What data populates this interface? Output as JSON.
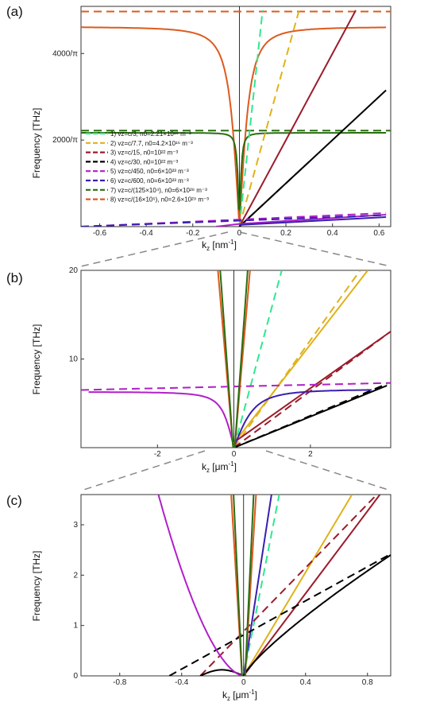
{
  "colors": {
    "s1": "#2ee88f",
    "s2": "#e0b21a",
    "s3": "#9b1c2c",
    "s4": "#000000",
    "s5": "#b020c8",
    "s6": "#3a1fb0",
    "s7": "#2a6e12",
    "s8": "#dd5a1e",
    "frame": "#333333",
    "zoom": "#888888"
  },
  "chart_data": [
    {
      "panel": "(a)",
      "type": "line",
      "xlabel": "kz [nm⁻¹]",
      "ylabel": "Frequency  [THz]",
      "xlim": [
        -0.68,
        0.65
      ],
      "ylim": [
        0,
        1620
      ],
      "xticks": [
        -0.6,
        -0.4,
        -0.2,
        0,
        0.2,
        0.4,
        0.6
      ],
      "xticklabels": [
        "-0.6",
        "-0.4",
        "-0.2",
        "0",
        "0.2",
        "0.4",
        "0.6"
      ],
      "yticks": [
        636.6,
        1273.2
      ],
      "yticklabels": [
        "2000/π",
        "4000/π"
      ],
      "legend": {
        "position": "left-middle",
        "entries": [
          {
            "n": "1)",
            "text": "vz=c/3, n0=2.21×10¹⁹ m⁻³",
            "color": "s1"
          },
          {
            "n": "2)",
            "text": "vz=c/7.7, n0=4.2×10¹⁶ m⁻³",
            "color": "s2"
          },
          {
            "n": "3)",
            "text": "vz=c/15, n0=10²² m⁻³",
            "color": "s3"
          },
          {
            "n": "4)",
            "text": "vz=c/30, n0=10²² m⁻³",
            "color": "s4"
          },
          {
            "n": "5)",
            "text": "vz=c/450, n0=6×10²³ m⁻³",
            "color": "s5"
          },
          {
            "n": "6)",
            "text": "vz=c/600, n0=6×10²³ m⁻³",
            "color": "s6"
          },
          {
            "n": "7)",
            "text": "vz=c/(125×10⁴), n0=6×10²⁸ m⁻³",
            "color": "s7"
          },
          {
            "n": "8)",
            "text": "vz=c/(16×10⁶), n0=2.6×10²⁹ m⁻³",
            "color": "s8"
          }
        ]
      },
      "series": [
        {
          "key": "s1",
          "dashed_slope": 15915,
          "dashed_range": [
            0,
            0.1
          ],
          "solid_slope": 15915
        },
        {
          "key": "s2",
          "dashed_slope": 6201,
          "dashed_range": [
            0,
            0.26
          ]
        },
        {
          "key": "s3",
          "dashed_slope": 3183,
          "solid_slope": 3183,
          "range": [
            0,
            0.5
          ]
        },
        {
          "key": "s4",
          "dashed_slope": 1592,
          "solid_slope": 1592,
          "range": [
            0,
            0.63
          ]
        },
        {
          "key": "s5",
          "dashed_level": 7.1,
          "range": [
            -0.68,
            0.63
          ]
        },
        {
          "key": "s6",
          "dashed_level": 6.9,
          "range": [
            -0.68,
            0.63
          ]
        },
        {
          "key": "s7",
          "dashed_level": 706,
          "range": [
            -0.68,
            0.63
          ]
        },
        {
          "key": "s8",
          "dashed_level": 1582,
          "range": [
            -0.68,
            0.63
          ]
        }
      ]
    },
    {
      "panel": "(b)",
      "type": "line",
      "xlabel": "kz [μm⁻¹]",
      "ylabel": "Frequency  [THz]",
      "xlim": [
        -4.0,
        4.1
      ],
      "ylim": [
        0,
        20
      ],
      "xticks": [
        -2,
        0,
        2
      ],
      "xticklabels": [
        "-2",
        "0",
        "2"
      ],
      "yticks": [
        10,
        20
      ],
      "yticklabels": [
        "10",
        "20"
      ],
      "series": [
        {
          "key": "s1",
          "dashed_slope": 15.92,
          "solid_slope": 15.92
        },
        {
          "key": "s2",
          "dashed_slope": 6.2,
          "solid_slope": 5.7
        },
        {
          "key": "s3",
          "dashed_slope": 3.183,
          "solid_slope": 3.2
        },
        {
          "key": "s4",
          "dashed_slope": 1.592,
          "solid_slope": 1.6
        },
        {
          "key": "s5",
          "dashed_level": 7.1
        },
        {
          "key": "s6",
          "dashed_level": 6.9
        },
        {
          "key": "s7",
          "note": "near-vertical"
        },
        {
          "key": "s8",
          "note": "near-vertical"
        }
      ]
    },
    {
      "panel": "(c)",
      "type": "line",
      "xlabel": "kz [μm⁻¹]",
      "ylabel": "Frequency  [THz]",
      "xlim": [
        -1.05,
        0.95
      ],
      "ylim": [
        0,
        3.6
      ],
      "xticks": [
        -0.8,
        -0.4,
        0,
        0.4,
        0.8
      ],
      "xticklabels": [
        "-0.8",
        "-0.4",
        "0",
        "0.4",
        "0.8"
      ],
      "yticks": [
        0,
        1,
        2,
        3
      ],
      "yticklabels": [
        "0",
        "1",
        "2",
        "3"
      ],
      "series": [
        {
          "key": "s1",
          "dashed_slope": 15.92
        },
        {
          "key": "s2",
          "solid_slope": 5.1
        },
        {
          "key": "s3",
          "dashed_slope": 3.183,
          "dashed_intercept": 0.82,
          "solid_slope": 4.0
        },
        {
          "key": "s4",
          "dashed_slope": 1.592,
          "dashed_intercept": 0.88,
          "solid_end": [
            0.95,
            2.25
          ]
        },
        {
          "key": "s5",
          "note": "curves up toward negative kz"
        },
        {
          "key": "s6",
          "note": "steep curve near kz=0.15"
        }
      ]
    }
  ],
  "labels": {
    "a": "(a)",
    "b": "(b)",
    "c": "(c)",
    "ylabel": "Frequency  [THz]",
    "xlabel_a": "k",
    "xsub_a": "z",
    "xunit_a": " [nm",
    "xsup_a": "-1",
    "xend_a": "]",
    "xlabel_b": "k",
    "xsub_b": "z",
    "xunit_b": " [μm",
    "xsup_b": "-1",
    "xend_b": "]",
    "xlabel_c": "k",
    "xsub_c": "z",
    "xunit_c": " [μm",
    "xsup_c": "-1",
    "xend_c": "]"
  }
}
